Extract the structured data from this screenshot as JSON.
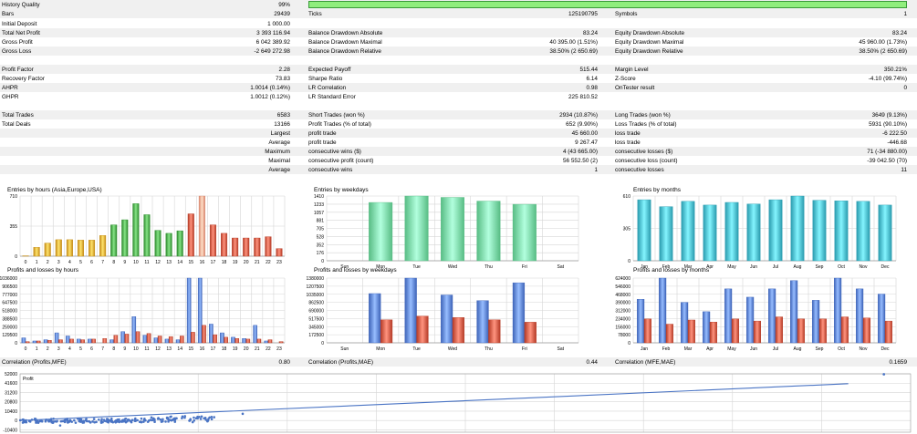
{
  "colors": {
    "stripe": "#f0f0f0",
    "quality_fill": "#90ee7d",
    "quality_border": "#3a9a3a",
    "grid": "#d6d6d6",
    "blue": "#3d63b8",
    "red": "#b43a25",
    "teal": "#2a9bae",
    "green_bar": "#58bc84",
    "line_blue": "#4a74c4"
  },
  "report": {
    "history_quality": {
      "label": "History Quality",
      "value": "99%",
      "bar_fraction": 1.0
    },
    "r_bars": {
      "c1": "Bars",
      "v1": "29439",
      "c2": "Ticks",
      "v2": "125190795",
      "c3": "Symbols",
      "v3": "1"
    },
    "r_deposit": {
      "c1": "Initial Deposit",
      "v1": "1 000.00"
    },
    "r_net": {
      "c1": "Total Net Profit",
      "v1": "3 393 116.94",
      "c2": "Balance Drawdown Absolute",
      "v2": "83.24",
      "c3": "Equity Drawdown Absolute",
      "v3": "83.24"
    },
    "r_gross_profit": {
      "c1": "Gross Profit",
      "v1": "6 042 389.92",
      "c2": "Balance Drawdown Maximal",
      "v2": "40 395.00 (1.51%)",
      "c3": "Equity Drawdown Maximal",
      "v3": "45 960.00 (1.73%)"
    },
    "r_gross_loss": {
      "c1": "Gross Loss",
      "v1": "-2 649 272.98",
      "c2": "Balance Drawdown Relative",
      "v2": "38.50% (2 650.69)",
      "c3": "Equity Drawdown Relative",
      "v3": "38.50% (2 650.69)"
    },
    "r_pf": {
      "c1": "Profit Factor",
      "v1": "2.28",
      "c2": "Expected Payoff",
      "v2": "515.44",
      "c3": "Margin Level",
      "v3": "350.21%"
    },
    "r_rf": {
      "c1": "Recovery Factor",
      "v1": "73.83",
      "c2": "Sharpe Ratio",
      "v2": "6.14",
      "c3": "Z-Score",
      "v3": "-4.10 (99.74%)"
    },
    "r_ahpr": {
      "c1": "AHPR",
      "v1": "1.0014 (0.14%)",
      "c2": "LR Correlation",
      "v2": "0.98",
      "c3": "OnTester result",
      "v3": "0"
    },
    "r_ghpr": {
      "c1": "GHPR",
      "v1": "1.0012 (0.12%)",
      "c2": "LR Standard Error",
      "v2": "225 810.52"
    },
    "r_trades": {
      "c1": "Total Trades",
      "v1": "6583",
      "c2": "Short Trades (won %)",
      "v2": "2934 (10.87%)",
      "c3": "Long Trades (won %)",
      "v3": "3649 (9.13%)"
    },
    "r_deals": {
      "c1": "Total Deals",
      "v1": "13166",
      "c2": "Profit Trades (% of total)",
      "v2": "652 (9.90%)",
      "c3": "Loss Trades (% of total)",
      "v3": "5931 (90.10%)"
    },
    "r_largest": {
      "v1": "Largest",
      "c2": "profit trade",
      "v2": "45 660.00",
      "c3": "loss trade",
      "v3": "-6 222.50"
    },
    "r_average": {
      "v1": "Average",
      "c2": "profit trade",
      "v2": "9 267.47",
      "c3": "loss trade",
      "v3": "-446.68"
    },
    "r_maximum": {
      "v1": "Maximum",
      "c2": "consecutive wins ($)",
      "v2": "4 (43 665.00)",
      "c3": "consecutive losses ($)",
      "v3": "71 (-34 880.00)"
    },
    "r_maximal": {
      "v1": "Maximal",
      "c2": "consecutive profit (count)",
      "v2": "56 552.50 (2)",
      "c3": "consecutive loss (count)",
      "v3": "-39 042.50 (70)"
    },
    "r_avg2": {
      "v1": "Average",
      "c2": "consecutive wins",
      "v2": "1",
      "c3": "consecutive losses",
      "v3": "11"
    },
    "r_corr": {
      "c1": "Correlation (Profits,MFE)",
      "v1": "0.80",
      "c2": "Correlation (Profits,MAE)",
      "v2": "0.44",
      "c3": "Correlation (MFE,MAE)",
      "v3": "0.1659"
    }
  },
  "chart_data": [
    {
      "type": "bar",
      "title": "Entries by hours (Asia,Europe,USA)",
      "categories": [
        "0",
        "1",
        "2",
        "3",
        "4",
        "5",
        "6",
        "7",
        "8",
        "9",
        "10",
        "11",
        "12",
        "13",
        "14",
        "15",
        "16",
        "17",
        "18",
        "19",
        "20",
        "21",
        "22",
        "23"
      ],
      "values": [
        5,
        105,
        155,
        195,
        195,
        190,
        190,
        245,
        370,
        430,
        620,
        490,
        305,
        270,
        300,
        500,
        710,
        370,
        270,
        215,
        215,
        215,
        230,
        90
      ],
      "yticks": [
        "710",
        "355",
        "0"
      ],
      "ylim": [
        0,
        710
      ]
    },
    {
      "type": "bar",
      "title": "Entries by weekdays",
      "categories": [
        "Sun",
        "Mon",
        "Tue",
        "Wed",
        "Thu",
        "Fri",
        "Sat"
      ],
      "values": [
        0,
        1270,
        1410,
        1380,
        1300,
        1230,
        0
      ],
      "yticks": [
        "1410",
        "1233",
        "1057",
        "881",
        "705",
        "528",
        "352",
        "176",
        "0"
      ],
      "ylim": [
        0,
        1410
      ]
    },
    {
      "type": "bar",
      "title": "Entries by months",
      "categories": [
        "Jan",
        "Feb",
        "Mar",
        "Apr",
        "May",
        "Jun",
        "Jul",
        "Aug",
        "Sep",
        "Oct",
        "Nov",
        "Dec"
      ],
      "values": [
        575,
        510,
        560,
        525,
        550,
        535,
        575,
        610,
        570,
        565,
        560,
        525
      ],
      "yticks": [
        "610",
        "305",
        "0"
      ],
      "ylim": [
        0,
        610
      ]
    },
    {
      "type": "bar",
      "title": "Profits and losses by hours",
      "categories": [
        "0",
        "1",
        "2",
        "3",
        "4",
        "5",
        "6",
        "7",
        "8",
        "9",
        "10",
        "11",
        "12",
        "13",
        "14",
        "15",
        "16",
        "17",
        "18",
        "19",
        "20",
        "21",
        "22",
        "23"
      ],
      "series": [
        {
          "values": [
            80000,
            30000,
            50000,
            160000,
            110000,
            60000,
            60000,
            0,
            50000,
            180000,
            420000,
            120000,
            80000,
            60000,
            50000,
            1036000,
            1036000,
            300000,
            160000,
            90000,
            70000,
            280000,
            30000,
            0
          ]
        },
        {
          "values": [
            20000,
            30000,
            40000,
            50000,
            60000,
            50000,
            60000,
            70000,
            120000,
            140000,
            180000,
            150000,
            110000,
            100000,
            110000,
            170000,
            280000,
            130000,
            90000,
            70000,
            60000,
            60000,
            50000,
            20000
          ]
        }
      ],
      "yticks": [
        "1036000",
        "906500",
        "777000",
        "647500",
        "518000",
        "388500",
        "259000",
        "129500",
        "0"
      ],
      "ylim": [
        0,
        1036000
      ]
    },
    {
      "type": "bar",
      "title": "Profits and losses by weekdays",
      "categories": [
        "Sun",
        "Mon",
        "Tue",
        "Wed",
        "Thu",
        "Fri",
        "Sat"
      ],
      "series": [
        {
          "values": [
            0,
            1050000,
            1380000,
            1020000,
            900000,
            1280000,
            0
          ]
        },
        {
          "values": [
            0,
            490000,
            570000,
            540000,
            490000,
            440000,
            0
          ]
        }
      ],
      "yticks": [
        "1380000",
        "1207500",
        "1035000",
        "862500",
        "690000",
        "517500",
        "345000",
        "172500",
        "0"
      ],
      "ylim": [
        0,
        1380000
      ]
    },
    {
      "type": "bar",
      "title": "Profits and losses by months",
      "categories": [
        "Jan",
        "Feb",
        "Mar",
        "Apr",
        "May",
        "Jun",
        "Jul",
        "Aug",
        "Sep",
        "Oct",
        "Nov",
        "Dec"
      ],
      "series": [
        {
          "values": [
            420000,
            624000,
            390000,
            300000,
            520000,
            440000,
            520000,
            600000,
            410000,
            624000,
            520000,
            470000
          ]
        },
        {
          "values": [
            230000,
            180000,
            220000,
            200000,
            230000,
            210000,
            250000,
            230000,
            230000,
            250000,
            240000,
            210000
          ]
        }
      ],
      "yticks": [
        "624000",
        "546000",
        "468000",
        "390000",
        "312000",
        "234000",
        "156000",
        "78000",
        "0"
      ],
      "ylim": [
        0,
        624000
      ]
    },
    {
      "type": "scatter",
      "series": [
        {
          "name": "Profit"
        }
      ],
      "yticks": [
        "52000",
        "41600",
        "31200",
        "20800",
        "10400",
        "0",
        "-10400"
      ],
      "ylim": [
        -13000,
        52000
      ],
      "trend": [
        [
          0,
          0
        ],
        [
          1,
          41000
        ]
      ],
      "outlier": [
        0.97,
        51500
      ]
    }
  ]
}
